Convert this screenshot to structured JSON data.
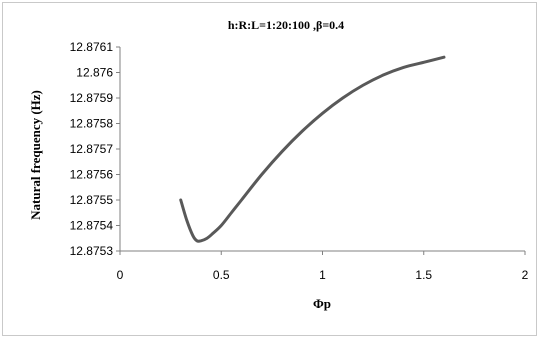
{
  "chart_data": {
    "type": "line",
    "title": "h:R:L=1:20:100 ,β=0.4",
    "xlabel": "Φp",
    "ylabel": "Natural frequency (Hz)",
    "xlim": [
      0,
      2
    ],
    "ylim": [
      12.8753,
      12.8761
    ],
    "xticks": [
      "0",
      "0.5",
      "1",
      "1.5",
      "2"
    ],
    "yticks": [
      "12.8753",
      "12.8754",
      "12.8755",
      "12.8756",
      "12.8757",
      "12.8758",
      "12.8759",
      "12.876",
      "12.8761"
    ],
    "grid": false,
    "legend": "none",
    "line_color": "#595959",
    "series": [
      {
        "x": [
          0.3,
          0.33,
          0.36,
          0.38,
          0.4,
          0.43,
          0.46,
          0.5,
          0.55,
          0.6,
          0.7,
          0.8,
          0.9,
          1.0,
          1.1,
          1.2,
          1.3,
          1.4,
          1.5,
          1.6
        ],
        "y": [
          12.8755,
          12.87542,
          12.87536,
          12.87534,
          12.87534,
          12.87535,
          12.87537,
          12.8754,
          12.87545,
          12.8755,
          12.8756,
          12.87569,
          12.87577,
          12.87584,
          12.8759,
          12.87595,
          12.87599,
          12.87602,
          12.87604,
          12.87606
        ]
      }
    ]
  }
}
